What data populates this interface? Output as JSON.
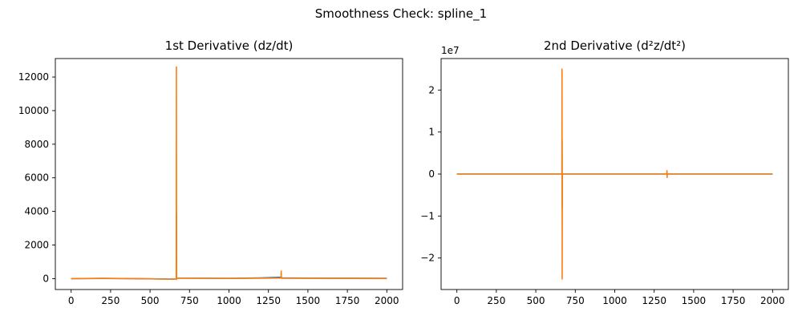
{
  "figure": {
    "suptitle": "Smoothness Check: spline_1"
  },
  "colors": {
    "series_blue": "#1f77b4",
    "series_orange": "#ff7f0e"
  },
  "chart_data": [
    {
      "type": "line",
      "title": "1st Derivative (dz/dt)",
      "xlabel": "",
      "ylabel": "",
      "xlim": [
        -100,
        2100
      ],
      "ylim": [
        -650,
        13100
      ],
      "xticks": [
        0,
        250,
        500,
        750,
        1000,
        1250,
        1500,
        1750,
        2000
      ],
      "yticks": [
        0,
        2000,
        4000,
        6000,
        8000,
        10000,
        12000
      ],
      "offset_label": "",
      "series": [
        {
          "color": "#1f77b4",
          "x": [
            0,
            200,
            400,
            600,
            666,
            667,
            667.5,
            668,
            669,
            800,
            1000,
            1200,
            1333,
            1334,
            1335,
            1500,
            1800,
            2000
          ],
          "y": [
            0,
            10,
            0,
            -25,
            -30,
            3900,
            -30,
            20,
            30,
            22,
            15,
            40,
            80,
            60,
            40,
            30,
            20,
            15
          ]
        },
        {
          "color": "#ff7f0e",
          "x": [
            0,
            200,
            400,
            600,
            665,
            666,
            667,
            668,
            669,
            670,
            800,
            1000,
            1200,
            1330,
            1331,
            1332,
            1333,
            1334,
            1500,
            1800,
            2000
          ],
          "y": [
            0,
            15,
            0,
            -30,
            -35,
            -35,
            12600,
            -35,
            20,
            25,
            20,
            10,
            20,
            30,
            450,
            30,
            25,
            20,
            15,
            10,
            5
          ]
        }
      ]
    },
    {
      "type": "line",
      "title": "2nd Derivative (d²z/dt²)",
      "xlabel": "",
      "ylabel": "",
      "xlim": [
        -100,
        2100
      ],
      "ylim": [
        -27500000,
        27500000
      ],
      "xticks": [
        0,
        250,
        500,
        750,
        1000,
        1250,
        1500,
        1750,
        2000
      ],
      "yticks": [
        -20000000,
        -10000000,
        0,
        10000000,
        20000000
      ],
      "ytick_labels": [
        "−2",
        "−1",
        "0",
        "1",
        "2"
      ],
      "offset_label": "1e7",
      "series": [
        {
          "color": "#1f77b4",
          "x": [
            0,
            666,
            666.5,
            667,
            667.5,
            668,
            2000
          ],
          "y": [
            0,
            0,
            8000000,
            -8000000,
            0,
            0,
            0
          ]
        },
        {
          "color": "#ff7f0e",
          "x": [
            0,
            665,
            666,
            667,
            668,
            669,
            1000,
            1330,
            1331,
            1332,
            1333,
            1334,
            2000
          ],
          "y": [
            0,
            0,
            25000000,
            -25000000,
            0,
            0,
            0,
            0,
            800000,
            -800000,
            0,
            0,
            0
          ]
        }
      ]
    }
  ]
}
